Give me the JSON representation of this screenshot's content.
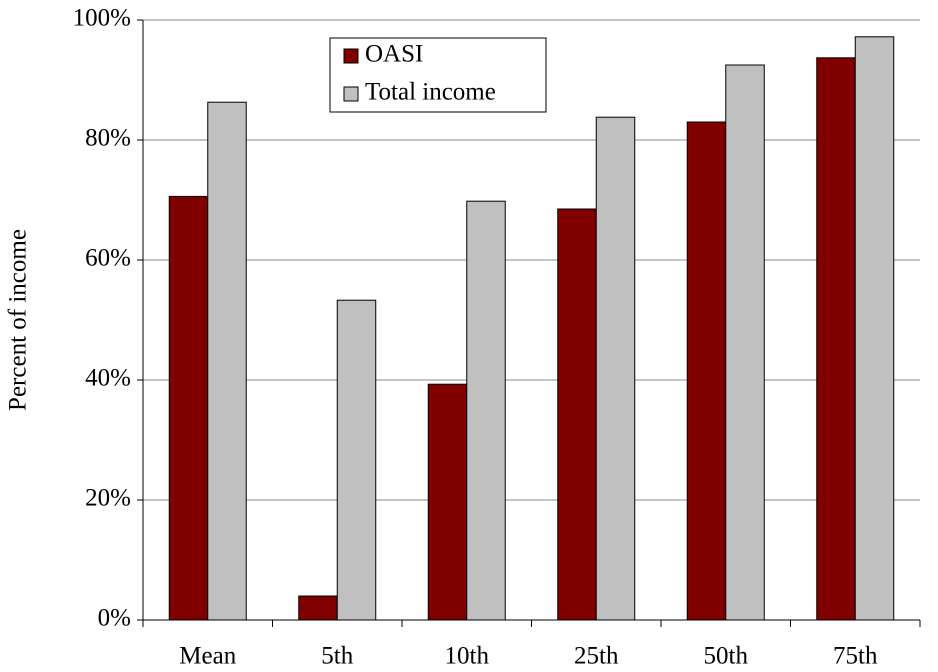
{
  "chart_data": {
    "type": "bar",
    "y_label": "Percent of income",
    "categories": [
      "Mean",
      "5th",
      "10th",
      "25th",
      "50th",
      "75th"
    ],
    "series": [
      {
        "name": "OASI",
        "color": "#800000",
        "values": [
          70.6,
          4.0,
          39.3,
          68.5,
          83.0,
          93.7
        ]
      },
      {
        "name": "Total income",
        "color": "#c0c0c0",
        "values": [
          86.3,
          53.3,
          69.8,
          83.8,
          92.5,
          97.2
        ]
      }
    ],
    "ylim": [
      0,
      100
    ],
    "yticks": [
      {
        "value": 0,
        "label": "0%"
      },
      {
        "value": 20,
        "label": "20%"
      },
      {
        "value": 40,
        "label": "40%"
      },
      {
        "value": 60,
        "label": "60%"
      },
      {
        "value": 80,
        "label": "80%"
      },
      {
        "value": 100,
        "label": "100%"
      }
    ],
    "grid": true
  }
}
